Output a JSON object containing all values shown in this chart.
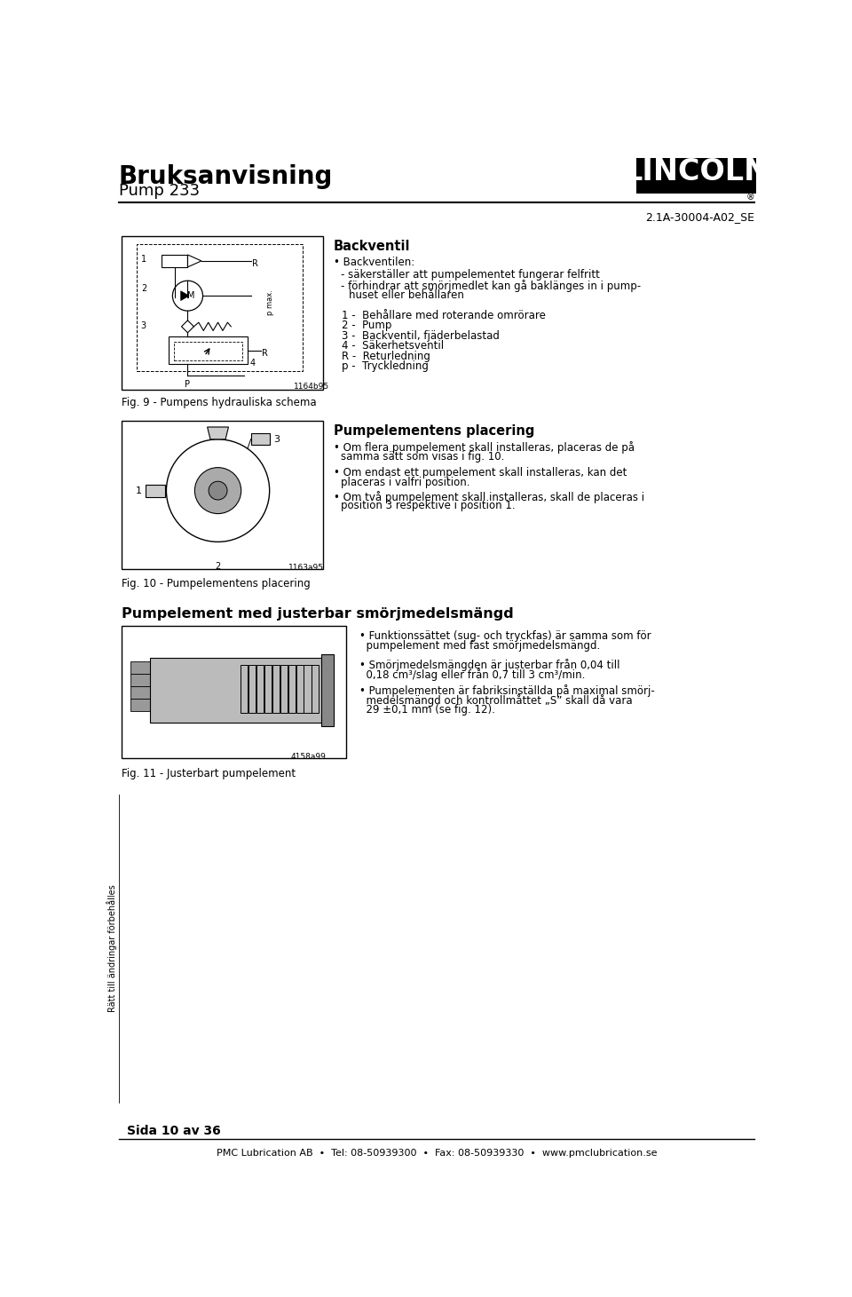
{
  "bg_color": "#ffffff",
  "title_bold": "Bruksanvisning",
  "title_sub": "Pump 233",
  "doc_number": "2.1A-30004-A02_SE",
  "backventil_title": "Backventil",
  "backventil_bullets": [
    "Backventilen:",
    "- säkerställer att pumpelementet fungerar felfritt",
    "- förhindrar att smörjmedlet kan gå baklänges in i pump-",
    "  huset eller behållaren"
  ],
  "backventil_legend": [
    "1 -  Behållare med roterande omrörare",
    "2 -  Pump",
    "3 -  Backventil, fjäderbelastad",
    "4 -  Säkerhetsventil",
    "R -  Returledning",
    "p -  Tryckledning"
  ],
  "fig9_caption": "Fig. 9 - Pumpens hydrauliska schema",
  "fig9_imgcode": "1164b95",
  "pumpelements_title": "Pumpelementens placering",
  "pumpelements_bullets": [
    "Om flera pumpelement skall installeras, placeras de på",
    "samma sätt som visas i fig. 10.",
    "Om endast ett pumpelement skall installeras, kan det",
    "placeras i valfri position.",
    "Om två pumpelement skall installeras, skall de placeras i",
    "position 3 respektive i position 1."
  ],
  "fig10_caption": "Fig. 10 - Pumpelementens placering",
  "fig10_imgcode": "1163a95",
  "pumpelement_title": "Pumpelement med justerbar smörjmedelsmängd",
  "pumpelement_bullets_lines": [
    [
      "Funktionssättet (sug- och tryckfas) är samma som för",
      "pumpelement med fast smörjmedelsmängd."
    ],
    [
      "Smörjmedelsmängden är justerbar från 0,04 till",
      "0,18 cm³/slag eller från 0,7 till 3 cm³/min."
    ],
    [
      "Pumpelementen är fabriksinställda på maximal smörj-",
      "medelsmängd och kontrollmåttet „S” skall då vara",
      "29 ±0,1 mm (se fig. 12)."
    ]
  ],
  "fig11_caption": "Fig. 11 - Justerbart pumpelement",
  "fig11_imgcode": "4158a99",
  "sidebar_text": "Rätt till ändringar förbehålles",
  "footer_page": "Sida 10 av 36",
  "footer_line": "PMC Lubrication AB  •  Tel: 08-50939300  •  Fax: 08-50939330  •  www.pmclubrication.se"
}
